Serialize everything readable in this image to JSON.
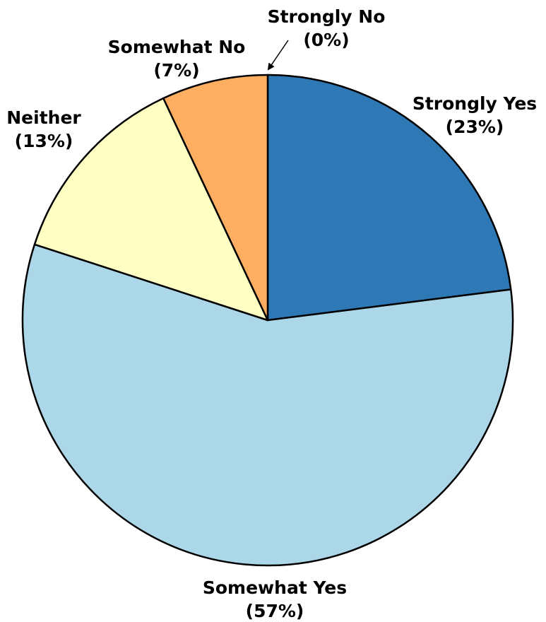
{
  "chart_data": {
    "type": "pie",
    "title": "",
    "start": "top",
    "direction": "clockwise",
    "slices": [
      {
        "label": "Strongly Yes",
        "value": 23,
        "display": "(23%)",
        "color": "#2e78b5"
      },
      {
        "label": "Somewhat Yes",
        "value": 57,
        "display": "(57%)",
        "color": "#acd7e9"
      },
      {
        "label": "Neither",
        "value": 13,
        "display": "(13%)",
        "color": "#ffffc4"
      },
      {
        "label": "Somewhat No",
        "value": 7,
        "display": "(7%)",
        "color": "#fdae61"
      },
      {
        "label": "Strongly No",
        "value": 0,
        "display": "(0%)",
        "color": "#d7191c"
      }
    ]
  }
}
